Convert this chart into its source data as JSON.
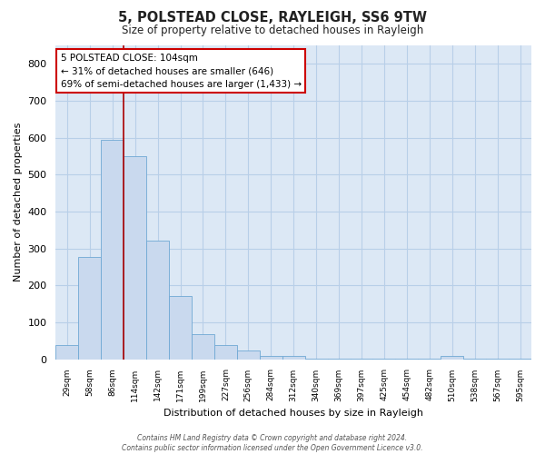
{
  "title": "5, POLSTEAD CLOSE, RAYLEIGH, SS6 9TW",
  "subtitle": "Size of property relative to detached houses in Rayleigh",
  "xlabel": "Distribution of detached houses by size in Rayleigh",
  "ylabel": "Number of detached properties",
  "bar_labels": [
    "29sqm",
    "58sqm",
    "86sqm",
    "114sqm",
    "142sqm",
    "171sqm",
    "199sqm",
    "227sqm",
    "256sqm",
    "284sqm",
    "312sqm",
    "340sqm",
    "369sqm",
    "397sqm",
    "425sqm",
    "454sqm",
    "482sqm",
    "510sqm",
    "538sqm",
    "567sqm",
    "595sqm"
  ],
  "bar_values": [
    38,
    278,
    595,
    549,
    320,
    170,
    67,
    38,
    23,
    10,
    10,
    2,
    2,
    2,
    2,
    2,
    2,
    8,
    2,
    2,
    2
  ],
  "bar_color": "#c9d9ee",
  "bar_edge_color": "#6fa8d4",
  "marker_color": "#aa0000",
  "annotation_lines": [
    "5 POLSTEAD CLOSE: 104sqm",
    "← 31% of detached houses are smaller (646)",
    "69% of semi-detached houses are larger (1,433) →"
  ],
  "ylim": [
    0,
    850
  ],
  "yticks": [
    0,
    100,
    200,
    300,
    400,
    500,
    600,
    700,
    800
  ],
  "footer_lines": [
    "Contains HM Land Registry data © Crown copyright and database right 2024.",
    "Contains public sector information licensed under the Open Government Licence v3.0."
  ],
  "background_color": "#ffffff",
  "plot_bg_color": "#dce8f5",
  "grid_color": "#b8cfe8"
}
